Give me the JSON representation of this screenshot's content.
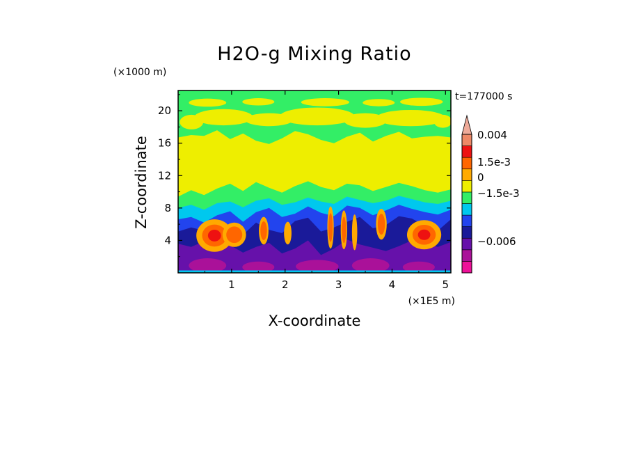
{
  "chart_data": {
    "type": "heatmap",
    "title": "H2O-g Mixing Ratio",
    "xlabel": "X-coordinate",
    "ylabel": "Z-coordinate",
    "x_units_label": "(×1E5 m)",
    "y_units_label": "(×1000 m)",
    "time_label": "t=177000 s",
    "xlim": [
      0,
      5.1
    ],
    "ylim": [
      0,
      22.5
    ],
    "x_ticks": [
      1,
      2,
      3,
      4,
      5
    ],
    "x_tick_labels": [
      "1",
      "2",
      "3",
      "4",
      "5"
    ],
    "y_ticks": [
      4,
      8,
      12,
      16,
      20
    ],
    "y_tick_labels": [
      "4",
      "8",
      "12",
      "16",
      "20"
    ],
    "colorbar": {
      "colors": [
        "#ee1199",
        "#aa1199",
        "#6611aa",
        "#1a1a99",
        "#2244ee",
        "#00c8ee",
        "#33ee66",
        "#eeee00",
        "#ffaa00",
        "#ff6600",
        "#ee1111",
        "#ee8866",
        "#eeaa99"
      ],
      "tick_labels": [
        "0.004",
        "1.5e-3",
        "0",
        "−1.5e-3",
        "−0.006"
      ]
    },
    "layers": [
      {
        "name": "surface-purple",
        "level": "-0.006",
        "color": "#6611aa",
        "z_top": [
          3.6,
          3.2,
          3.9,
          3.0,
          3.4,
          2.5,
          3.2,
          3.7,
          2.4,
          3.0,
          4.0,
          2.2,
          3.0,
          4.1,
          3.5,
          3.1,
          2.7,
          3.3,
          4.0,
          3.6,
          3.2,
          3.8
        ]
      },
      {
        "name": "navy-band",
        "level": "-2e-3",
        "color": "#1a1a99",
        "z_top": [
          5.1,
          5.6,
          5.2,
          4.8,
          5.5,
          4.7,
          6.2,
          5.3,
          4.9,
          6.4,
          6.8,
          5.1,
          5.6,
          6.3,
          6.9,
          5.5,
          5.9,
          7.0,
          6.7,
          5.8,
          5.2,
          6.6
        ]
      },
      {
        "name": "blue-band",
        "level": "-1.5e-3",
        "color": "#2244ee",
        "z_top": [
          6.6,
          6.9,
          6.2,
          7.1,
          7.6,
          6.3,
          7.5,
          8.0,
          6.9,
          7.3,
          8.2,
          7.4,
          7.0,
          8.3,
          8.0,
          7.1,
          7.7,
          8.4,
          7.9,
          7.5,
          7.2,
          7.8
        ]
      },
      {
        "name": "cyan-band",
        "level": "-1e-3",
        "color": "#00c8ee",
        "z_top": [
          8.0,
          8.4,
          7.8,
          8.6,
          8.8,
          8.1,
          8.9,
          9.2,
          8.4,
          8.7,
          9.3,
          8.8,
          8.5,
          9.4,
          9.0,
          8.6,
          8.9,
          9.5,
          9.1,
          8.7,
          8.5,
          8.9
        ]
      },
      {
        "name": "green-band",
        "level": "-5e-4",
        "color": "#33ee66",
        "z_top": [
          9.4,
          10.2,
          9.6,
          10.4,
          11.0,
          10.1,
          11.2,
          10.5,
          9.9,
          10.7,
          11.3,
          10.6,
          10.2,
          11.0,
          10.8,
          10.1,
          10.6,
          11.1,
          10.7,
          10.2,
          9.9,
          10.3
        ]
      },
      {
        "name": "yellow-body",
        "level": "0",
        "color": "#eeee00",
        "z_top": [
          16.7,
          17.0,
          16.9,
          17.6,
          16.5,
          17.2,
          16.3,
          15.9,
          16.6,
          17.5,
          17.1,
          16.4,
          16.0,
          16.8,
          17.3,
          16.2,
          16.9,
          17.4,
          16.6,
          16.8,
          16.9,
          16.7
        ]
      }
    ],
    "yellow_patches": [
      {
        "x_center": 0.25,
        "z_center": 18.6,
        "half_width": 0.22,
        "half_height": 0.9
      },
      {
        "x_center": 0.85,
        "z_center": 19.2,
        "half_width": 0.55,
        "half_height": 1.0
      },
      {
        "x_center": 1.7,
        "z_center": 18.9,
        "half_width": 0.45,
        "half_height": 0.8
      },
      {
        "x_center": 2.6,
        "z_center": 19.3,
        "half_width": 0.7,
        "half_height": 1.1
      },
      {
        "x_center": 3.5,
        "z_center": 18.8,
        "half_width": 0.4,
        "half_height": 0.9
      },
      {
        "x_center": 4.35,
        "z_center": 19.1,
        "half_width": 0.65,
        "half_height": 1.0
      },
      {
        "x_center": 4.95,
        "z_center": 18.7,
        "half_width": 0.17,
        "half_height": 0.8
      },
      {
        "x_center": 0.55,
        "z_center": 21.0,
        "half_width": 0.35,
        "half_height": 0.5
      },
      {
        "x_center": 1.5,
        "z_center": 21.1,
        "half_width": 0.3,
        "half_height": 0.45
      },
      {
        "x_center": 2.75,
        "z_center": 21.05,
        "half_width": 0.45,
        "half_height": 0.5
      },
      {
        "x_center": 3.75,
        "z_center": 21.0,
        "half_width": 0.3,
        "half_height": 0.45
      },
      {
        "x_center": 4.55,
        "z_center": 21.1,
        "half_width": 0.4,
        "half_height": 0.5
      }
    ],
    "blobs": [
      {
        "x_center": 0.68,
        "z_center": 4.6,
        "rx": 0.34,
        "rz": 2.0,
        "colors": [
          "#ffaa00",
          "#ff6600",
          "#ee1111"
        ]
      },
      {
        "x_center": 1.05,
        "z_center": 4.7,
        "rx": 0.22,
        "rz": 1.5,
        "colors": [
          "#ffaa00",
          "#ff6600"
        ]
      },
      {
        "x_center": 1.6,
        "z_center": 5.2,
        "rx": 0.09,
        "rz": 1.7,
        "colors": [
          "#ffaa00",
          "#ff6600"
        ]
      },
      {
        "x_center": 2.05,
        "z_center": 4.9,
        "rx": 0.07,
        "rz": 1.4,
        "colors": [
          "#ffaa00"
        ]
      },
      {
        "x_center": 2.85,
        "z_center": 5.6,
        "rx": 0.06,
        "rz": 2.6,
        "colors": [
          "#ffaa00",
          "#ff6600"
        ]
      },
      {
        "x_center": 3.1,
        "z_center": 5.3,
        "rx": 0.06,
        "rz": 2.4,
        "colors": [
          "#ffaa00",
          "#ff6600"
        ]
      },
      {
        "x_center": 3.3,
        "z_center": 5.0,
        "rx": 0.05,
        "rz": 2.2,
        "colors": [
          "#ffaa00"
        ]
      },
      {
        "x_center": 3.8,
        "z_center": 6.0,
        "rx": 0.1,
        "rz": 1.9,
        "colors": [
          "#ffaa00",
          "#ff6600"
        ]
      },
      {
        "x_center": 4.6,
        "z_center": 4.7,
        "rx": 0.32,
        "rz": 1.8,
        "colors": [
          "#ffaa00",
          "#ff6600",
          "#ee1111"
        ]
      }
    ],
    "surface_magenta": [
      {
        "x_center": 0.55,
        "z_center": 0.9,
        "rx": 0.35,
        "rz": 0.9
      },
      {
        "x_center": 1.5,
        "z_center": 0.7,
        "rx": 0.3,
        "rz": 0.7
      },
      {
        "x_center": 2.6,
        "z_center": 0.8,
        "rx": 0.4,
        "rz": 0.8
      },
      {
        "x_center": 3.6,
        "z_center": 0.9,
        "rx": 0.35,
        "rz": 0.9
      },
      {
        "x_center": 4.5,
        "z_center": 0.7,
        "rx": 0.3,
        "rz": 0.7
      }
    ],
    "surface_cyan_strip_z": 0.3
  }
}
